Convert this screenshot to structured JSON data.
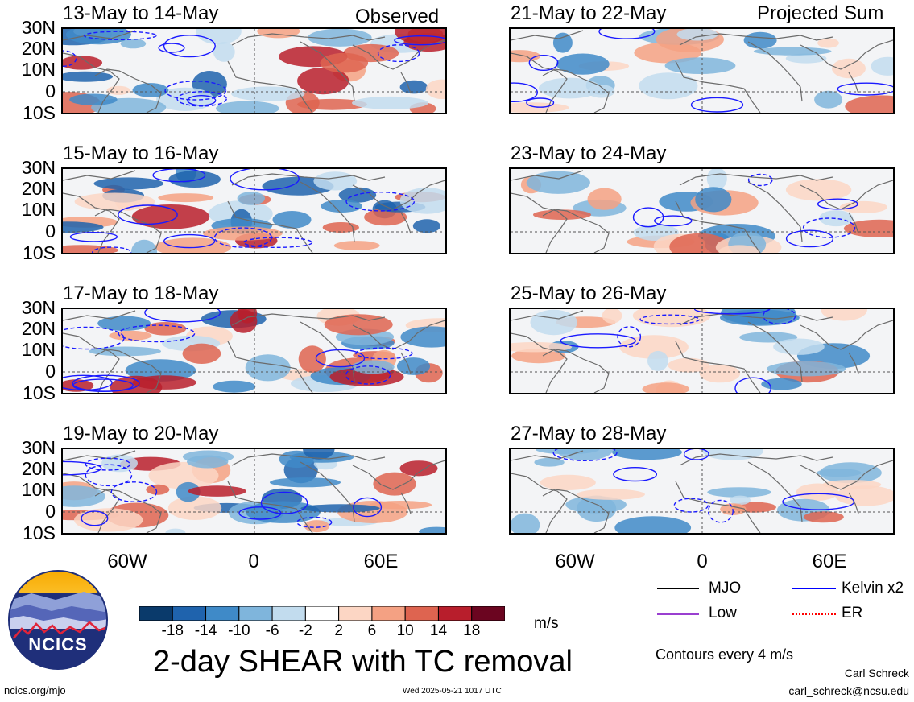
{
  "columns": {
    "left_label": "Observed",
    "right_label": "Projected Sum"
  },
  "panels_left": [
    {
      "title": "13-May to 14-May",
      "variant": 0
    },
    {
      "title": "15-May to 16-May",
      "variant": 1
    },
    {
      "title": "17-May to 18-May",
      "variant": 2
    },
    {
      "title": "19-May to 20-May",
      "variant": 3
    }
  ],
  "panels_right": [
    {
      "title": "21-May to 22-May",
      "variant": 4
    },
    {
      "title": "23-May to 24-May",
      "variant": 5
    },
    {
      "title": "25-May to 26-May",
      "variant": 6
    },
    {
      "title": "27-May to 28-May",
      "variant": 7
    }
  ],
  "lat_labels": [
    "30N",
    "20N",
    "10N",
    "0",
    "10S"
  ],
  "lon_labels": [
    "60W",
    "0",
    "60E"
  ],
  "colorbar": {
    "tick_labels": [
      "-18",
      "-14",
      "-10",
      "-6",
      "-2",
      "2",
      "6",
      "10",
      "14",
      "18"
    ],
    "colors": [
      "#0a3a6b",
      "#1f63ad",
      "#3f8ac8",
      "#7fb5dc",
      "#c2dcee",
      "#ffffff",
      "#fcd6c4",
      "#f4a183",
      "#de6450",
      "#b81e2c",
      "#6b0520"
    ],
    "units": "m/s"
  },
  "legend": {
    "items": [
      {
        "label": "MJO",
        "color": "#000000",
        "style": "solid"
      },
      {
        "label": "Kelvin x2",
        "color": "#0000ff",
        "style": "solid"
      },
      {
        "label": "Low",
        "color": "#9a3fd0",
        "style": "solid"
      },
      {
        "label": "ER",
        "color": "#ff0000",
        "style": "dotted"
      }
    ],
    "note": "Contours every 4 m/s"
  },
  "main_title": "2-day SHEAR with TC removal",
  "logo_text": "NCICS",
  "footer": {
    "url": "ncics.org/mjo",
    "timestamp": "Wed 2025-05-21 1017 UTC",
    "author": "Carl Schreck",
    "email": "carl_schreck@ncsu.edu"
  }
}
